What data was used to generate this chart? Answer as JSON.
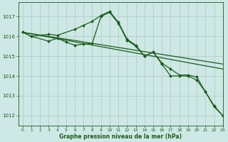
{
  "xlabel": "Graphe pression niveau de la mer (hPa)",
  "background_color": "#cde8e5",
  "grid_color": "#b0c8c5",
  "line_color": "#1a5c1a",
  "xlim": [
    -0.5,
    23
  ],
  "ylim": [
    1011.5,
    1017.7
  ],
  "yticks": [
    1012,
    1013,
    1014,
    1015,
    1016,
    1017
  ],
  "xticks": [
    0,
    1,
    2,
    3,
    4,
    5,
    6,
    7,
    8,
    9,
    10,
    11,
    12,
    13,
    14,
    15,
    16,
    17,
    18,
    19,
    20,
    21,
    22,
    23
  ],
  "line1_x": [
    0,
    1,
    3,
    4,
    6,
    7,
    8,
    9,
    10,
    11,
    12,
    13,
    14,
    15,
    16,
    17,
    18,
    19,
    20,
    21,
    22,
    23
  ],
  "line1_y": [
    1016.2,
    1016.0,
    1016.1,
    1016.05,
    1016.35,
    1016.55,
    1016.75,
    1017.05,
    1017.25,
    1016.7,
    1015.85,
    1015.55,
    1015.0,
    1015.2,
    1014.65,
    1014.35,
    1014.05,
    1014.05,
    1013.95,
    1013.2,
    1012.5,
    1012.0
  ],
  "line2_x": [
    0,
    1,
    3,
    4,
    5,
    6,
    7,
    8,
    9,
    10,
    11,
    12,
    13,
    14,
    15,
    16,
    17,
    18,
    19,
    20,
    21,
    22,
    23
  ],
  "line2_y": [
    1016.2,
    1016.0,
    1015.75,
    1015.9,
    1015.7,
    1015.55,
    1015.6,
    1015.65,
    1017.0,
    1017.2,
    1016.65,
    1015.8,
    1015.5,
    1015.0,
    1015.2,
    1014.6,
    1014.0,
    1014.0,
    1014.0,
    1013.8,
    1013.2,
    1012.45,
    1012.0
  ],
  "line3_x": [
    0,
    23
  ],
  "line3_y": [
    1016.2,
    1014.6
  ],
  "line4_x": [
    0,
    23
  ],
  "line4_y": [
    1016.2,
    1014.35
  ]
}
